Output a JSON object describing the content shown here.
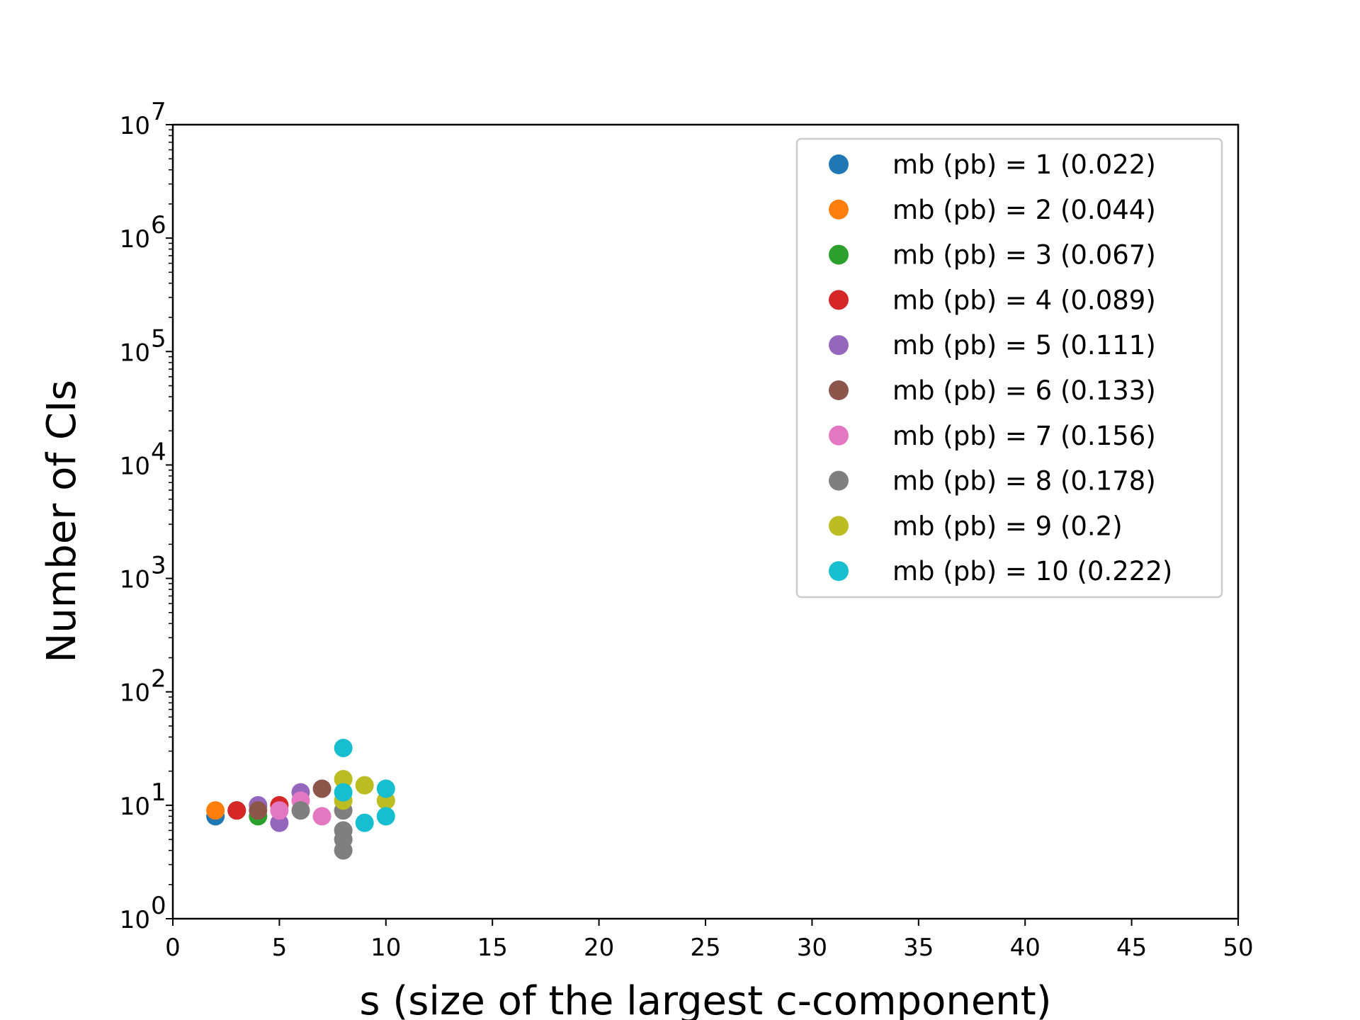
{
  "chart_data": {
    "type": "scatter",
    "xlabel": "s (size of the largest c-component)",
    "ylabel": "Number of CIs",
    "xlim": [
      0,
      50
    ],
    "ylim": [
      1,
      10000000
    ],
    "yscale": "log",
    "xticks": [
      "0",
      "5",
      "10",
      "15",
      "20",
      "25",
      "30",
      "35",
      "40",
      "45",
      "50"
    ],
    "yticks": [
      {
        "base": "10",
        "exp": "0"
      },
      {
        "base": "10",
        "exp": "1"
      },
      {
        "base": "10",
        "exp": "2"
      },
      {
        "base": "10",
        "exp": "3"
      },
      {
        "base": "10",
        "exp": "4"
      },
      {
        "base": "10",
        "exp": "5"
      },
      {
        "base": "10",
        "exp": "6"
      },
      {
        "base": "10",
        "exp": "7"
      }
    ],
    "grid": false,
    "legend_position": "top-right",
    "series": [
      {
        "name": "mb (pb) = 1 (0.022)",
        "color": "#1f77b4",
        "points": [
          [
            2,
            8
          ]
        ]
      },
      {
        "name": "mb (pb) = 2 (0.044)",
        "color": "#ff7f0e",
        "points": [
          [
            2,
            9
          ]
        ]
      },
      {
        "name": "mb (pb) = 3 (0.067)",
        "color": "#2ca02c",
        "points": [
          [
            3,
            9
          ],
          [
            4,
            8
          ]
        ]
      },
      {
        "name": "mb (pb) = 4 (0.089)",
        "color": "#d62728",
        "points": [
          [
            3,
            9
          ],
          [
            5,
            10
          ]
        ]
      },
      {
        "name": "mb (pb) = 5 (0.111)",
        "color": "#9467bd",
        "points": [
          [
            4,
            10
          ],
          [
            5,
            7
          ],
          [
            6,
            13
          ]
        ]
      },
      {
        "name": "mb (pb) = 6 (0.133)",
        "color": "#8c564b",
        "points": [
          [
            4,
            9
          ],
          [
            7,
            14
          ]
        ]
      },
      {
        "name": "mb (pb) = 7 (0.156)",
        "color": "#e377c2",
        "points": [
          [
            5,
            9
          ],
          [
            6,
            11
          ],
          [
            7,
            8
          ]
        ]
      },
      {
        "name": "mb (pb) = 8 (0.178)",
        "color": "#7f7f7f",
        "points": [
          [
            6,
            9
          ],
          [
            8,
            4
          ],
          [
            8,
            5
          ],
          [
            8,
            6
          ],
          [
            8,
            9
          ]
        ]
      },
      {
        "name": "mb (pb) = 9 (0.2)",
        "color": "#bcbd22",
        "points": [
          [
            8,
            11
          ],
          [
            8,
            17
          ],
          [
            9,
            15
          ],
          [
            10,
            11
          ]
        ]
      },
      {
        "name": "mb (pb) = 10 (0.222)",
        "color": "#17becf",
        "points": [
          [
            8,
            13
          ],
          [
            8,
            32
          ],
          [
            9,
            7
          ],
          [
            10,
            8
          ],
          [
            10,
            14
          ]
        ]
      }
    ]
  }
}
